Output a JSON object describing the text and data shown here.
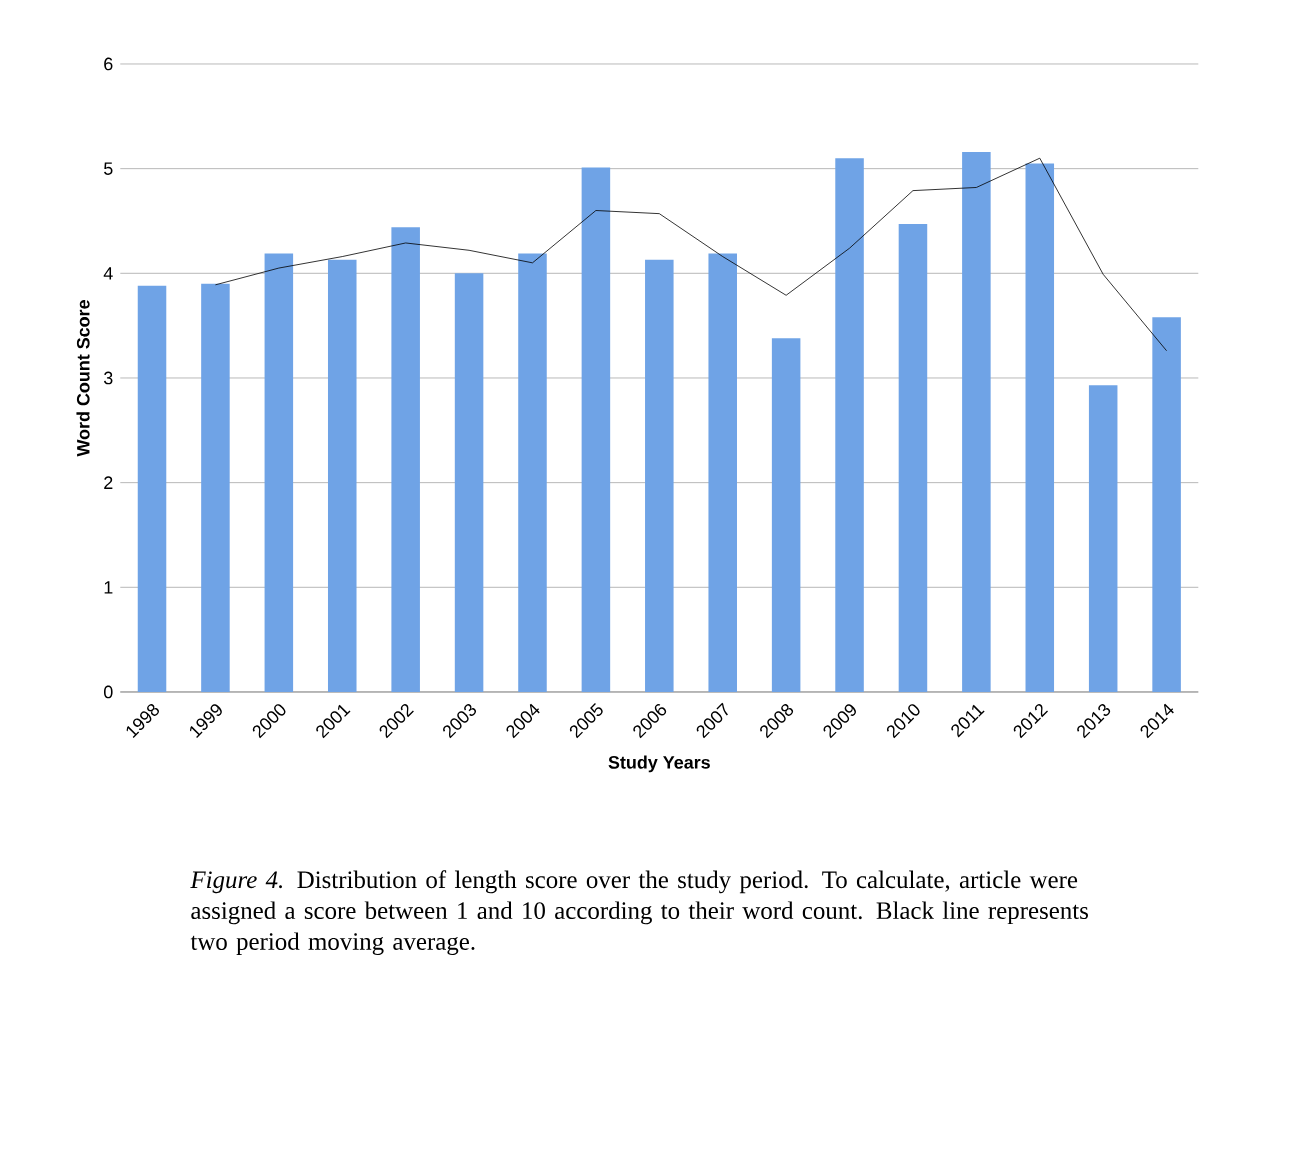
{
  "chart_data": {
    "type": "bar",
    "categories": [
      "1998",
      "1999",
      "2000",
      "2001",
      "2002",
      "2003",
      "2004",
      "2005",
      "2006",
      "2007",
      "2008",
      "2009",
      "2010",
      "2011",
      "2012",
      "2013",
      "2014"
    ],
    "series": [
      {
        "color": "#6fa3e6",
        "values": [
          3.88,
          3.9,
          4.19,
          4.13,
          4.44,
          4.0,
          4.19,
          5.01,
          4.13,
          4.19,
          3.38,
          5.1,
          4.47,
          5.16,
          5.05,
          2.93,
          3.58
        ]
      },
      {
        "type": "line",
        "color": "#000000",
        "values": [
          null,
          3.89,
          4.05,
          4.16,
          4.29,
          4.22,
          4.1,
          4.6,
          4.57,
          4.16,
          3.79,
          4.24,
          4.79,
          4.82,
          5.1,
          3.99,
          3.26
        ]
      }
    ],
    "xlabel": "Study Years",
    "ylabel": "Word Count Score",
    "ylim": [
      0,
      6
    ],
    "yticks": [
      0,
      1,
      2,
      3,
      4,
      5,
      6
    ],
    "grid": "y",
    "marker": "none",
    "annotations": [
      "*Figure 4.* Distribution of length score over the study period. To calculate, article were assigned a score between 1 and 10 according to their word count. Black line represents two period moving average."
    ]
  }
}
